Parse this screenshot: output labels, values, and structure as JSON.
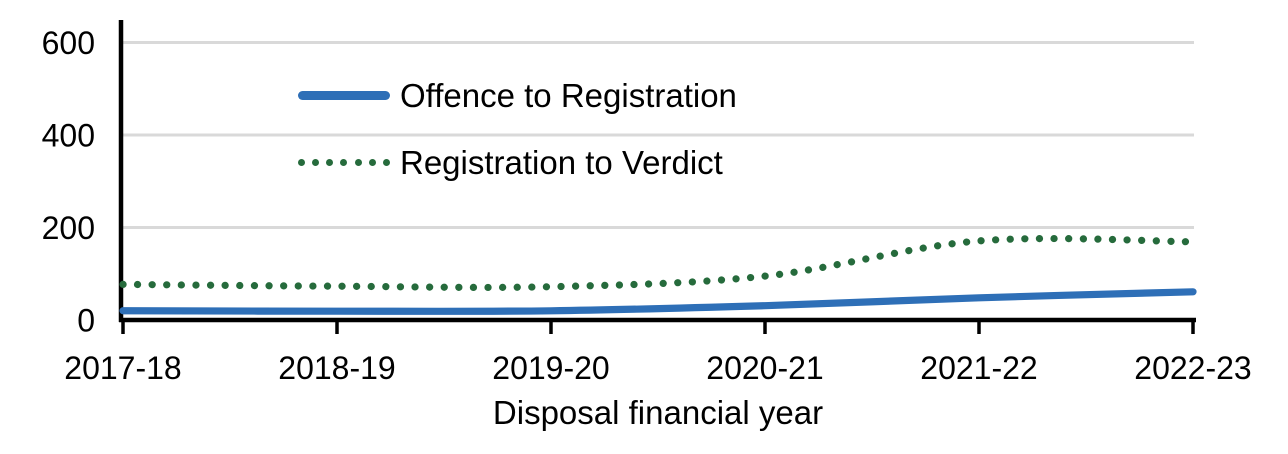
{
  "chart_data": {
    "type": "line",
    "title": "",
    "xlabel": "Disposal financial year",
    "ylabel": "",
    "categories": [
      "2017-18",
      "2018-19",
      "2019-20",
      "2020-21",
      "2021-22",
      "2022-23"
    ],
    "series": [
      {
        "name": "Offence to Registration",
        "values": [
          20,
          19,
          20,
          31,
          48,
          61
        ],
        "color": "#2E6FB7",
        "line_style": "solid"
      },
      {
        "name": "Registration to Verdict",
        "values": [
          77,
          73,
          72,
          95,
          171,
          169
        ],
        "color": "#266B3C",
        "line_style": "dotted"
      }
    ],
    "ylim": [
      0,
      650
    ],
    "yticks": [
      0,
      200,
      400,
      600
    ],
    "ytick_labels": [
      "0",
      "200",
      "400",
      "600"
    ],
    "grid": "horizontal",
    "legend_position": "inside-top-left",
    "smoothed_lines": true
  },
  "colors": {
    "grid": "#D9D9D9",
    "axis": "#000000",
    "text": "#000000"
  }
}
